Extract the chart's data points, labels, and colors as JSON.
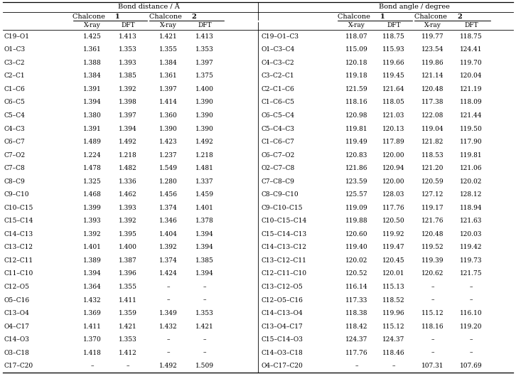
{
  "left_rows": [
    [
      "C19–O1",
      "1.425",
      "1.413",
      "1.421",
      "1.413"
    ],
    [
      "O1–C3",
      "1.361",
      "1.353",
      "1.355",
      "1.353"
    ],
    [
      "C3–C2",
      "1.388",
      "1.393",
      "1.384",
      "1.397"
    ],
    [
      "C2–C1",
      "1.384",
      "1.385",
      "1.361",
      "1.375"
    ],
    [
      "C1–C6",
      "1.391",
      "1.392",
      "1.397",
      "1.400"
    ],
    [
      "C6–C5",
      "1.394",
      "1.398",
      "1.414",
      "1.390"
    ],
    [
      "C5–C4",
      "1.380",
      "1.397",
      "1.360",
      "1.390"
    ],
    [
      "C4–C3",
      "1.391",
      "1.394",
      "1.390",
      "1.390"
    ],
    [
      "C6–C7",
      "1.489",
      "1.492",
      "1.423",
      "1.492"
    ],
    [
      "C7–O2",
      "1.224",
      "1.218",
      "1.237",
      "1.218"
    ],
    [
      "C7–C8",
      "1.478",
      "1.482",
      "1.549",
      "1.481"
    ],
    [
      "C8–C9",
      "1.325",
      "1.336",
      "1.280",
      "1.337"
    ],
    [
      "C9–C10",
      "1.468",
      "1.462",
      "1.456",
      "1.459"
    ],
    [
      "C10–C15",
      "1.399",
      "1.393",
      "1.374",
      "1.401"
    ],
    [
      "C15–C14",
      "1.393",
      "1.392",
      "1.346",
      "1.378"
    ],
    [
      "C14–C13",
      "1.392",
      "1.395",
      "1.404",
      "1.394"
    ],
    [
      "C13–C12",
      "1.401",
      "1.400",
      "1.392",
      "1.394"
    ],
    [
      "C12–C11",
      "1.389",
      "1.387",
      "1.374",
      "1.385"
    ],
    [
      "C11–C10",
      "1.394",
      "1.396",
      "1.424",
      "1.394"
    ],
    [
      "C12–O5",
      "1.364",
      "1.355",
      "–",
      "–"
    ],
    [
      "O5–C16",
      "1.432",
      "1.411",
      "–",
      "–"
    ],
    [
      "C13–O4",
      "1.369",
      "1.359",
      "1.349",
      "1.353"
    ],
    [
      "O4–C17",
      "1.411",
      "1.421",
      "1.432",
      "1.421"
    ],
    [
      "C14–O3",
      "1.370",
      "1.353",
      "–",
      "–"
    ],
    [
      "O3–C18",
      "1.418",
      "1.412",
      "–",
      "–"
    ],
    [
      "C17–C20",
      "–",
      "–",
      "1.492",
      "1.509"
    ]
  ],
  "right_rows": [
    [
      "C19–O1–C3",
      "118.07",
      "118.75",
      "119.77",
      "118.75"
    ],
    [
      "O1–C3–C4",
      "115.09",
      "115.93",
      "123.54",
      "124.41"
    ],
    [
      "C4–C3–C2",
      "120.18",
      "119.66",
      "119.86",
      "119.70"
    ],
    [
      "C3–C2–C1",
      "119.18",
      "119.45",
      "121.14",
      "120.04"
    ],
    [
      "C2–C1–C6",
      "121.59",
      "121.64",
      "120.48",
      "121.19"
    ],
    [
      "C1–C6–C5",
      "118.16",
      "118.05",
      "117.38",
      "118.09"
    ],
    [
      "C6–C5–C4",
      "120.98",
      "121.03",
      "122.08",
      "121.44"
    ],
    [
      "C5–C4–C3",
      "119.81",
      "120.13",
      "119.04",
      "119.50"
    ],
    [
      "C1–C6–C7",
      "119.49",
      "117.89",
      "121.82",
      "117.90"
    ],
    [
      "C6–C7–O2",
      "120.83",
      "120.00",
      "118.53",
      "119.81"
    ],
    [
      "O2–C7–C8",
      "121.86",
      "120.94",
      "121.20",
      "121.06"
    ],
    [
      "C7–C8–C9",
      "123.59",
      "120.00",
      "120.59",
      "120.02"
    ],
    [
      "C8–C9–C10",
      "125.57",
      "128.03",
      "127.12",
      "128.12"
    ],
    [
      "C9–C10–C15",
      "119.09",
      "117.76",
      "119.17",
      "118.94"
    ],
    [
      "C10–C15–C14",
      "119.88",
      "120.50",
      "121.76",
      "121.63"
    ],
    [
      "C15–C14–C13",
      "120.60",
      "119.92",
      "120.48",
      "120.03"
    ],
    [
      "C14–C13–C12",
      "119.40",
      "119.47",
      "119.52",
      "119.42"
    ],
    [
      "C13–C12–C11",
      "120.02",
      "120.45",
      "119.39",
      "119.73"
    ],
    [
      "C12–C11–C10",
      "120.52",
      "120.01",
      "120.62",
      "121.75"
    ],
    [
      "C13–C12–O5",
      "116.14",
      "115.13",
      "–",
      "–"
    ],
    [
      "C12–O5–C16",
      "117.33",
      "118.52",
      "–",
      "–"
    ],
    [
      "C14–C13–O4",
      "118.38",
      "119.96",
      "115.12",
      "116.10"
    ],
    [
      "C13–O4–C17",
      "118.42",
      "115.12",
      "118.16",
      "119.20"
    ],
    [
      "C15–C14–O3",
      "124.37",
      "124.37",
      "–",
      "–"
    ],
    [
      "C14–O3–C18",
      "117.76",
      "118.46",
      "–",
      "–"
    ],
    [
      "O4–C17–C20",
      "–",
      "–",
      "107.31",
      "107.69"
    ]
  ],
  "fs": 6.5,
  "fs_hdr": 7.0,
  "bg": "white"
}
